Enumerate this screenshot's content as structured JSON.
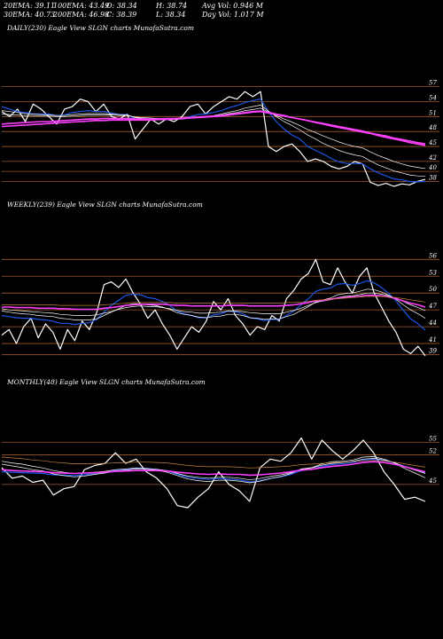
{
  "stats": {
    "row1": [
      "20EMA: 39.11",
      "100EMA: 43.49",
      "O: 38.34",
      "H: 38.74",
      "Avg Vol: 0.946  M"
    ],
    "row2": [
      "30EMA: 40.73",
      "200EMA: 46.98",
      "C: 38.39",
      "L: 38.34",
      "Day Vol: 1.017 M"
    ]
  },
  "colors": {
    "background": "#000000",
    "price": "#ffffff",
    "ema_short": "#1e56e6",
    "ema_mid": "#ffffff",
    "ema_long": "#ff40ff",
    "ema_200": "#c08040",
    "gridline": "#a05a2c"
  },
  "chart_data": [
    {
      "title": "DAILY(230) Eagle  View  SLGN  charts MunafaSutra.com",
      "type": "line",
      "y_ticks": [
        57,
        54,
        51,
        48,
        45,
        42,
        40,
        38
      ],
      "ylim": [
        37,
        58
      ],
      "grid": true,
      "series": [
        {
          "role": "price",
          "values": [
            52.0,
            51.0,
            52.5,
            50.0,
            53.5,
            52.5,
            51.0,
            49.5,
            52.5,
            53.0,
            54.5,
            54.0,
            52.0,
            53.5,
            51.0,
            50.5,
            51.5,
            46.5,
            48.5,
            50.5,
            49.5,
            50.5,
            50.0,
            51.0,
            53.0,
            53.5,
            51.5,
            53.0,
            54.0,
            55.0,
            54.5,
            56.0,
            55.0,
            56.0,
            45.0,
            44.0,
            45.0,
            45.5,
            44.0,
            42.0,
            42.5,
            42.0,
            41.0,
            40.5,
            41.0,
            42.0,
            41.5,
            37.8,
            37.2,
            37.6,
            37.0,
            37.5,
            37.3,
            38.0,
            38.4
          ]
        },
        {
          "role": "ema_short",
          "values": [
            53.0,
            52.5,
            52.0,
            51.8,
            51.5,
            51.5,
            51.5,
            51.2,
            51.3,
            51.8,
            52.0,
            52.2,
            52.0,
            52.0,
            51.7,
            51.4,
            51.4,
            50.5,
            50.4,
            50.5,
            50.5,
            50.5,
            50.5,
            50.6,
            51.0,
            51.4,
            51.5,
            51.8,
            52.2,
            52.8,
            53.2,
            53.8,
            54.2,
            54.5,
            52.0,
            50.0,
            48.5,
            47.3,
            46.5,
            45.0,
            44.2,
            43.5,
            42.6,
            41.9,
            41.6,
            41.6,
            41.5,
            40.5,
            39.7,
            39.1,
            38.5,
            38.3,
            38.0,
            37.9,
            38.0
          ]
        },
        {
          "role": "ema_mid",
          "values": [
            52.2,
            52.0,
            51.8,
            51.6,
            51.5,
            51.4,
            51.3,
            51.2,
            51.2,
            51.4,
            51.5,
            51.6,
            51.6,
            51.6,
            51.5,
            51.4,
            51.3,
            50.8,
            50.6,
            50.5,
            50.4,
            50.4,
            50.4,
            50.5,
            50.7,
            50.9,
            51.0,
            51.2,
            51.5,
            51.9,
            52.2,
            52.7,
            53.0,
            53.3,
            52.1,
            51.0,
            50.0,
            49.2,
            48.3,
            47.3,
            46.5,
            45.6,
            44.9,
            44.2,
            43.7,
            43.3,
            43.0,
            42.1,
            41.3,
            40.7,
            40.1,
            39.7,
            39.3,
            39.1,
            39.0
          ]
        },
        {
          "role": "ema_mid",
          "values": [
            51.5,
            51.4,
            51.3,
            51.2,
            51.2,
            51.1,
            51.1,
            51.0,
            51.0,
            51.1,
            51.2,
            51.3,
            51.3,
            51.3,
            51.3,
            51.2,
            51.2,
            50.9,
            50.8,
            50.7,
            50.6,
            50.6,
            50.6,
            50.6,
            50.8,
            50.9,
            51.0,
            51.1,
            51.3,
            51.6,
            51.8,
            52.2,
            52.4,
            52.7,
            51.9,
            51.2,
            50.5,
            49.9,
            49.2,
            48.4,
            47.8,
            47.1,
            46.5,
            45.9,
            45.4,
            45.0,
            44.7,
            43.9,
            43.2,
            42.6,
            42.0,
            41.5,
            41.1,
            40.8,
            40.6
          ]
        },
        {
          "role": "ema_long",
          "values": [
            49.5,
            49.6,
            49.7,
            49.8,
            49.9,
            50.0,
            50.0,
            50.1,
            50.2,
            50.3,
            50.4,
            50.5,
            50.5,
            50.6,
            50.6,
            50.6,
            50.6,
            50.5,
            50.5,
            50.5,
            50.5,
            50.6,
            50.6,
            50.7,
            50.8,
            50.9,
            51.0,
            51.1,
            51.2,
            51.4,
            51.6,
            51.8,
            52.0,
            52.1,
            51.8,
            51.5,
            51.2,
            50.8,
            50.5,
            50.2,
            49.8,
            49.5,
            49.1,
            48.8,
            48.5,
            48.2,
            47.9,
            47.6,
            47.2,
            46.8,
            46.5,
            46.2,
            45.8,
            45.5,
            45.2
          ]
        },
        {
          "role": "ema_long",
          "values": [
            49.0,
            49.1,
            49.2,
            49.3,
            49.4,
            49.5,
            49.6,
            49.7,
            49.8,
            49.9,
            50.0,
            50.1,
            50.2,
            50.2,
            50.3,
            50.3,
            50.3,
            50.3,
            50.3,
            50.3,
            50.4,
            50.4,
            50.5,
            50.6,
            50.7,
            50.8,
            50.9,
            51.0,
            51.1,
            51.3,
            51.5,
            51.7,
            51.9,
            52.0,
            51.7,
            51.4,
            51.1,
            50.8,
            50.5,
            50.2,
            49.9,
            49.6,
            49.3,
            49.0,
            48.7,
            48.4,
            48.1,
            47.7,
            47.4,
            47.1,
            46.7,
            46.4,
            46.1,
            45.8,
            45.5
          ]
        }
      ]
    },
    {
      "title": "WEEKLY(239) Eagle  View  SLGN  charts MunafaSutra.com",
      "type": "line",
      "y_ticks": [
        56,
        53,
        50,
        47,
        44,
        41,
        39
      ],
      "ylim": [
        38,
        57
      ],
      "grid": true,
      "series": [
        {
          "role": "price",
          "values": [
            42.5,
            43.5,
            41.0,
            44.0,
            45.5,
            42.0,
            44.5,
            43.0,
            40.0,
            43.5,
            41.5,
            45.0,
            43.5,
            46.5,
            51.5,
            52.0,
            51.0,
            52.5,
            50.0,
            48.0,
            45.5,
            47.0,
            44.5,
            42.5,
            40.0,
            42.0,
            44.0,
            43.0,
            45.0,
            48.5,
            47.0,
            49.0,
            46.0,
            44.5,
            42.5,
            44.0,
            43.5,
            46.0,
            45.0,
            49.0,
            50.5,
            52.5,
            53.5,
            56.0,
            52.0,
            51.5,
            54.5,
            52.0,
            50.0,
            53.0,
            54.5,
            50.0,
            47.5,
            45.0,
            43.0,
            40.0,
            39.2,
            40.5,
            38.8
          ]
        },
        {
          "role": "ema_short",
          "values": [
            46.0,
            45.8,
            45.6,
            45.5,
            45.5,
            45.3,
            45.2,
            45.0,
            44.6,
            44.6,
            44.4,
            44.6,
            44.7,
            45.3,
            46.6,
            47.8,
            48.7,
            49.6,
            49.8,
            49.7,
            49.2,
            49.0,
            48.5,
            47.8,
            46.8,
            46.3,
            46.0,
            45.6,
            45.6,
            46.1,
            46.3,
            46.8,
            46.7,
            46.3,
            45.6,
            45.4,
            45.1,
            45.3,
            45.3,
            46.0,
            46.8,
            47.9,
            49.0,
            50.3,
            50.7,
            50.9,
            51.6,
            51.7,
            51.4,
            51.7,
            52.2,
            51.8,
            51.0,
            49.9,
            48.6,
            46.9,
            45.4,
            44.5,
            43.4
          ]
        },
        {
          "role": "ema_mid",
          "values": [
            46.8,
            46.6,
            46.4,
            46.3,
            46.2,
            46.0,
            45.9,
            45.8,
            45.5,
            45.4,
            45.2,
            45.2,
            45.2,
            45.4,
            46.0,
            46.6,
            47.2,
            47.8,
            48.1,
            48.1,
            47.9,
            47.8,
            47.5,
            47.1,
            46.5,
            46.2,
            46.0,
            45.7,
            45.6,
            45.8,
            45.9,
            46.2,
            46.2,
            46.0,
            45.6,
            45.5,
            45.3,
            45.4,
            45.4,
            45.8,
            46.2,
            46.9,
            47.6,
            48.4,
            48.8,
            49.1,
            49.7,
            49.9,
            50.0,
            50.3,
            50.7,
            50.6,
            50.2,
            49.6,
            48.9,
            47.9,
            47.0,
            46.3,
            45.5
          ]
        },
        {
          "role": "ema_mid",
          "values": [
            47.2,
            47.0,
            46.9,
            46.8,
            46.7,
            46.6,
            46.5,
            46.4,
            46.2,
            46.1,
            46.0,
            46.0,
            46.0,
            46.1,
            46.4,
            46.7,
            47.1,
            47.4,
            47.6,
            47.7,
            47.6,
            47.6,
            47.4,
            47.2,
            46.9,
            46.7,
            46.6,
            46.4,
            46.4,
            46.5,
            46.6,
            46.8,
            46.8,
            46.7,
            46.5,
            46.4,
            46.3,
            46.3,
            46.3,
            46.6,
            46.9,
            47.3,
            47.8,
            48.3,
            48.6,
            48.8,
            49.2,
            49.4,
            49.5,
            49.7,
            50.0,
            50.0,
            49.8,
            49.5,
            49.1,
            48.5,
            47.9,
            47.4,
            46.9
          ]
        },
        {
          "role": "ema_long",
          "values": [
            47.5,
            47.5,
            47.4,
            47.4,
            47.4,
            47.3,
            47.3,
            47.3,
            47.2,
            47.2,
            47.1,
            47.1,
            47.1,
            47.1,
            47.3,
            47.4,
            47.6,
            47.8,
            47.9,
            48.0,
            48.0,
            48.0,
            48.0,
            47.9,
            47.8,
            47.8,
            47.7,
            47.7,
            47.7,
            47.7,
            47.7,
            47.8,
            47.8,
            47.8,
            47.7,
            47.7,
            47.7,
            47.7,
            47.7,
            47.8,
            47.9,
            48.1,
            48.3,
            48.6,
            48.7,
            48.9,
            49.1,
            49.2,
            49.3,
            49.4,
            49.6,
            49.6,
            49.5,
            49.3,
            49.0,
            48.6,
            48.2,
            47.9,
            47.5
          ]
        },
        {
          "role": "ema_200",
          "values": [
            47.9,
            47.9,
            47.9,
            47.9,
            47.9,
            47.9,
            47.9,
            47.9,
            47.8,
            47.8,
            47.8,
            47.8,
            47.8,
            47.8,
            47.9,
            48.0,
            48.1,
            48.2,
            48.3,
            48.3,
            48.3,
            48.3,
            48.3,
            48.3,
            48.2,
            48.2,
            48.2,
            48.2,
            48.2,
            48.2,
            48.2,
            48.2,
            48.2,
            48.2,
            48.2,
            48.2,
            48.2,
            48.2,
            48.2,
            48.3,
            48.3,
            48.4,
            48.5,
            48.7,
            48.8,
            48.9,
            49.0,
            49.1,
            49.2,
            49.3,
            49.4,
            49.4,
            49.4,
            49.3,
            49.2,
            49.0,
            48.8,
            48.6,
            48.4
          ]
        }
      ]
    },
    {
      "title": "MONTHLY(48) Eagle  View  SLGN  charts MunafaSutra.com",
      "type": "line",
      "y_ticks": [
        55,
        52,
        45
      ],
      "ylim": [
        37,
        58
      ],
      "grid": true,
      "series": [
        {
          "role": "price",
          "values": [
            49.0,
            46.5,
            47.0,
            45.5,
            46.0,
            42.5,
            44.0,
            44.5,
            48.5,
            49.5,
            50.0,
            52.5,
            50.0,
            51.0,
            48.0,
            46.5,
            44.0,
            40.0,
            39.5,
            42.0,
            44.0,
            48.0,
            45.0,
            43.5,
            41.0,
            49.0,
            51.0,
            50.5,
            52.5,
            56.0,
            51.0,
            55.5,
            53.0,
            51.0,
            53.0,
            55.5,
            52.5,
            48.0,
            45.0,
            41.5,
            42.0,
            41.0
          ]
        },
        {
          "role": "ema_short",
          "values": [
            48.0,
            47.9,
            47.8,
            47.7,
            47.6,
            47.3,
            47.2,
            47.1,
            47.3,
            47.6,
            47.9,
            48.4,
            48.6,
            48.9,
            48.8,
            48.6,
            48.2,
            47.4,
            46.7,
            46.4,
            46.2,
            46.4,
            46.3,
            46.1,
            45.6,
            45.9,
            46.4,
            46.8,
            47.4,
            48.3,
            48.6,
            49.3,
            49.7,
            49.9,
            50.2,
            50.8,
            51.0,
            50.7,
            50.1,
            49.3,
            48.6,
            47.8
          ]
        },
        {
          "role": "ema_mid",
          "values": [
            49.8,
            49.4,
            49.0,
            48.5,
            48.2,
            47.5,
            47.1,
            46.8,
            47.0,
            47.4,
            47.7,
            48.2,
            48.4,
            48.7,
            48.6,
            48.4,
            47.9,
            47.1,
            46.3,
            45.9,
            45.7,
            46.0,
            46.0,
            45.8,
            45.4,
            45.8,
            46.4,
            46.9,
            47.6,
            48.7,
            49.0,
            49.9,
            50.4,
            50.5,
            50.8,
            51.5,
            51.6,
            51.0,
            50.1,
            48.8,
            47.7,
            46.6
          ]
        },
        {
          "role": "ema_mid",
          "values": [
            50.5,
            50.1,
            49.8,
            49.3,
            48.9,
            48.3,
            47.9,
            47.6,
            47.7,
            47.9,
            48.1,
            48.5,
            48.7,
            48.9,
            48.8,
            48.6,
            48.3,
            47.6,
            47.0,
            46.7,
            46.5,
            46.7,
            46.7,
            46.5,
            46.1,
            46.4,
            46.9,
            47.3,
            47.8,
            48.6,
            48.9,
            49.6,
            50.0,
            50.2,
            50.5,
            51.0,
            51.2,
            50.8,
            50.2,
            49.2,
            48.4,
            47.6
          ]
        },
        {
          "role": "ema_long",
          "values": [
            48.5,
            48.3,
            48.2,
            48.1,
            48.0,
            47.8,
            47.7,
            47.6,
            47.7,
            47.8,
            47.9,
            48.1,
            48.2,
            48.3,
            48.3,
            48.3,
            48.2,
            47.9,
            47.7,
            47.5,
            47.4,
            47.5,
            47.4,
            47.4,
            47.2,
            47.3,
            47.5,
            47.7,
            48.0,
            48.4,
            48.6,
            49.0,
            49.3,
            49.5,
            49.8,
            50.2,
            50.4,
            50.2,
            49.8,
            49.2,
            48.6,
            48.0
          ]
        },
        {
          "role": "ema_200",
          "values": [
            51.5,
            51.3,
            51.1,
            50.8,
            50.6,
            50.3,
            50.1,
            49.9,
            49.9,
            49.9,
            50.0,
            50.1,
            50.2,
            50.3,
            50.3,
            50.2,
            50.1,
            49.8,
            49.5,
            49.3,
            49.2,
            49.2,
            49.2,
            49.1,
            48.9,
            49.0,
            49.1,
            49.2,
            49.4,
            49.7,
            49.8,
            50.0,
            50.2,
            50.3,
            50.4,
            50.6,
            50.7,
            50.6,
            50.3,
            49.9,
            49.5,
            49.1
          ]
        }
      ]
    }
  ]
}
